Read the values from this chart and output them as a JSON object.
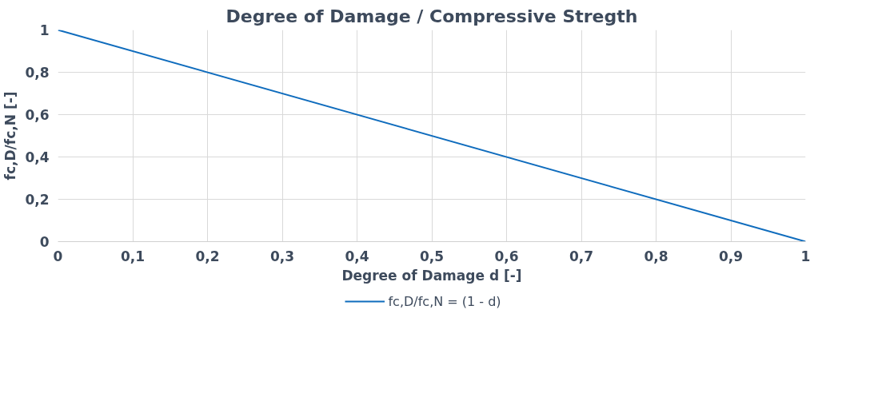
{
  "chart_data": {
    "type": "line",
    "title": "Degree of Damage / Compressive Stregth",
    "xlabel": "Degree of Damage d [-]",
    "ylabel": "fc,D/fc,N [-]",
    "x": [
      0,
      1
    ],
    "series": [
      {
        "name": "fc,D/fc,N = (1 - d)",
        "color": "#0f6cbd",
        "values": [
          1,
          0
        ]
      }
    ],
    "xlim": [
      0,
      1
    ],
    "ylim": [
      0,
      1
    ],
    "xticks": [
      0,
      {
        "value": 0.1,
        "label": "0,1"
      },
      {
        "value": 0.2,
        "label": "0,2"
      },
      {
        "value": 0.3,
        "label": "0,3"
      },
      {
        "value": 0.4,
        "label": "0,4"
      },
      {
        "value": 0.5,
        "label": "0,5"
      },
      {
        "value": 0.6,
        "label": "0,6"
      },
      {
        "value": 0.7,
        "label": "0,7"
      },
      {
        "value": 0.8,
        "label": "0,8"
      },
      {
        "value": 0.9,
        "label": "0,9"
      },
      1
    ],
    "yticks": [
      0,
      {
        "value": 0.2,
        "label": "0,2"
      },
      {
        "value": 0.4,
        "label": "0,4"
      },
      {
        "value": 0.6,
        "label": "0,6"
      },
      {
        "value": 0.8,
        "label": "0,8"
      },
      1
    ],
    "grid": true,
    "legend": "bottom",
    "marker": "none",
    "line_style": "solid"
  }
}
